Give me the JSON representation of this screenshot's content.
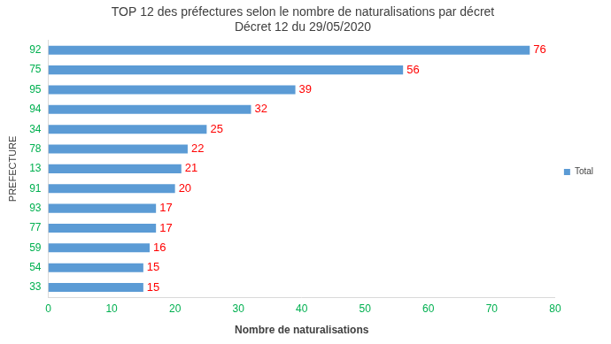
{
  "chart_data": {
    "type": "bar",
    "orientation": "horizontal",
    "title": [
      "TOP 12 des préfectures selon le nombre de naturalisations par décret",
      "Décret 12 du 29/05/2020"
    ],
    "x_label": "Nombre de naturalisations",
    "y_label": "PREFECTURE",
    "categories": [
      "92",
      "75",
      "95",
      "94",
      "34",
      "78",
      "13",
      "91",
      "93",
      "77",
      "59",
      "54",
      "33"
    ],
    "series": [
      {
        "name": "Total",
        "color": "#5b9bd5",
        "values": [
          76,
          56,
          39,
          32,
          25,
          22,
          21,
          20,
          17,
          17,
          16,
          15,
          15
        ]
      }
    ],
    "xlim": [
      0,
      80
    ],
    "xticks": [
      0,
      10,
      20,
      30,
      40,
      50,
      60,
      70,
      80
    ],
    "grid": false,
    "legend": "right",
    "data_labels": true
  }
}
